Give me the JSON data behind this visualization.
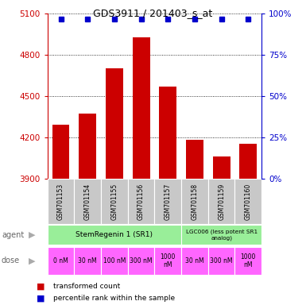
{
  "title": "GDS3911 / 201403_s_at",
  "samples": [
    "GSM701153",
    "GSM701154",
    "GSM701155",
    "GSM701156",
    "GSM701157",
    "GSM701158",
    "GSM701159",
    "GSM701160"
  ],
  "bar_values": [
    4290,
    4370,
    4700,
    4930,
    4570,
    4180,
    4060,
    4150
  ],
  "percentile_values": [
    97,
    97,
    97,
    97,
    97,
    97,
    97,
    97
  ],
  "ylim_left": [
    3900,
    5100
  ],
  "ylim_right": [
    0,
    100
  ],
  "yticks_left": [
    3900,
    4200,
    4500,
    4800,
    5100
  ],
  "yticks_right": [
    0,
    25,
    50,
    75,
    100
  ],
  "bar_color": "#cc0000",
  "dot_color": "#0000cc",
  "bar_width": 0.65,
  "dose_labels": [
    "0 nM",
    "30 nM",
    "100 nM",
    "300 nM",
    "1000\nnM",
    "30 nM",
    "300 nM",
    "1000\nnM"
  ],
  "dose_color": "#ff66ff",
  "sample_bg_color": "#c8c8c8",
  "left_label_color": "#cc0000",
  "right_label_color": "#0000cc",
  "agent_color": "#99ee99",
  "agent_label1": "StemRegenin 1 (SR1)",
  "agent_label2": "LGC006 (less potent SR1\nanalog)",
  "legend_bar_color": "#cc0000",
  "legend_dot_color": "#0000cc"
}
